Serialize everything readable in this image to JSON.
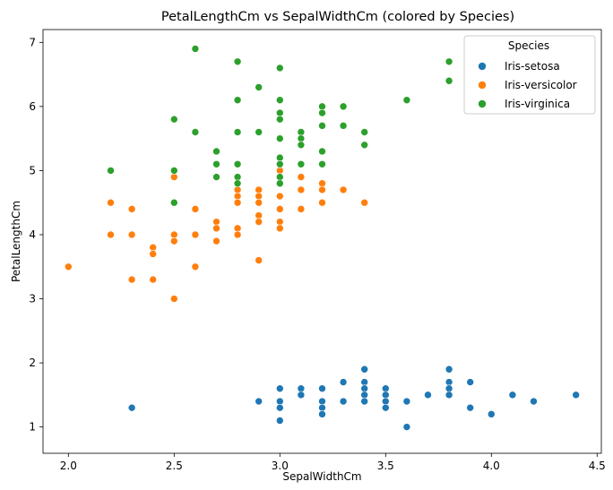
{
  "chart_data": {
    "type": "scatter",
    "title": "PetalLengthCm vs SepalWidthCm (colored by Species)",
    "xlabel": "SepalWidthCm",
    "ylabel": "PetalLengthCm",
    "xlim": [
      1.88,
      4.52
    ],
    "ylim": [
      0.59,
      7.2
    ],
    "xticks": [
      "2.0",
      "2.5",
      "3.0",
      "3.5",
      "4.0",
      "4.5"
    ],
    "yticks": [
      "1",
      "2",
      "3",
      "4",
      "5",
      "6",
      "7"
    ],
    "grid": false,
    "legend": {
      "title": "Species",
      "placement": "top-right"
    },
    "series": [
      {
        "name": "Iris-setosa",
        "color": "#1f77b4",
        "points": [
          [
            2.3,
            1.3
          ],
          [
            2.9,
            1.4
          ],
          [
            3.0,
            1.6
          ],
          [
            3.0,
            1.4
          ],
          [
            3.0,
            1.3
          ],
          [
            3.0,
            1.1
          ],
          [
            3.1,
            1.6
          ],
          [
            3.1,
            1.5
          ],
          [
            3.2,
            1.6
          ],
          [
            3.2,
            1.4
          ],
          [
            3.2,
            1.3
          ],
          [
            3.2,
            1.2
          ],
          [
            3.3,
            1.7
          ],
          [
            3.3,
            1.4
          ],
          [
            3.4,
            1.9
          ],
          [
            3.4,
            1.7
          ],
          [
            3.4,
            1.6
          ],
          [
            3.4,
            1.5
          ],
          [
            3.4,
            1.4
          ],
          [
            3.5,
            1.6
          ],
          [
            3.5,
            1.5
          ],
          [
            3.5,
            1.4
          ],
          [
            3.5,
            1.3
          ],
          [
            3.6,
            1.4
          ],
          [
            3.6,
            1.0
          ],
          [
            3.7,
            1.5
          ],
          [
            3.8,
            1.9
          ],
          [
            3.8,
            1.7
          ],
          [
            3.8,
            1.6
          ],
          [
            3.8,
            1.5
          ],
          [
            3.9,
            1.7
          ],
          [
            3.9,
            1.3
          ],
          [
            4.0,
            1.2
          ],
          [
            4.1,
            1.5
          ],
          [
            4.2,
            1.4
          ],
          [
            4.4,
            1.5
          ]
        ]
      },
      {
        "name": "Iris-versicolor",
        "color": "#ff7f0e",
        "points": [
          [
            2.0,
            3.5
          ],
          [
            2.2,
            4.5
          ],
          [
            2.2,
            4.0
          ],
          [
            2.3,
            4.4
          ],
          [
            2.3,
            4.0
          ],
          [
            2.3,
            3.3
          ],
          [
            2.4,
            3.8
          ],
          [
            2.4,
            3.7
          ],
          [
            2.4,
            3.3
          ],
          [
            2.5,
            4.9
          ],
          [
            2.5,
            4.0
          ],
          [
            2.5,
            3.9
          ],
          [
            2.5,
            3.0
          ],
          [
            2.6,
            4.4
          ],
          [
            2.6,
            4.0
          ],
          [
            2.6,
            3.5
          ],
          [
            2.7,
            4.2
          ],
          [
            2.7,
            4.1
          ],
          [
            2.7,
            3.9
          ],
          [
            2.8,
            4.7
          ],
          [
            2.8,
            4.6
          ],
          [
            2.8,
            4.5
          ],
          [
            2.8,
            4.1
          ],
          [
            2.8,
            4.0
          ],
          [
            2.9,
            4.7
          ],
          [
            2.9,
            4.6
          ],
          [
            2.9,
            4.5
          ],
          [
            2.9,
            4.3
          ],
          [
            2.9,
            4.2
          ],
          [
            2.9,
            3.6
          ],
          [
            3.0,
            5.0
          ],
          [
            3.0,
            4.6
          ],
          [
            3.0,
            4.4
          ],
          [
            3.0,
            4.2
          ],
          [
            3.0,
            4.1
          ],
          [
            3.1,
            4.9
          ],
          [
            3.1,
            4.7
          ],
          [
            3.1,
            4.4
          ],
          [
            3.2,
            4.8
          ],
          [
            3.2,
            4.7
          ],
          [
            3.2,
            4.5
          ],
          [
            3.3,
            4.7
          ],
          [
            3.4,
            4.5
          ]
        ]
      },
      {
        "name": "Iris-virginica",
        "color": "#2ca02c",
        "points": [
          [
            2.2,
            5.0
          ],
          [
            2.5,
            5.8
          ],
          [
            2.5,
            5.0
          ],
          [
            2.5,
            4.5
          ],
          [
            2.6,
            6.9
          ],
          [
            2.6,
            5.6
          ],
          [
            2.7,
            5.3
          ],
          [
            2.7,
            5.1
          ],
          [
            2.7,
            4.9
          ],
          [
            2.8,
            6.7
          ],
          [
            2.8,
            6.1
          ],
          [
            2.8,
            5.6
          ],
          [
            2.8,
            5.1
          ],
          [
            2.8,
            4.9
          ],
          [
            2.8,
            4.8
          ],
          [
            2.9,
            6.3
          ],
          [
            2.9,
            5.6
          ],
          [
            3.0,
            6.6
          ],
          [
            3.0,
            6.1
          ],
          [
            3.0,
            5.9
          ],
          [
            3.0,
            5.8
          ],
          [
            3.0,
            5.5
          ],
          [
            3.0,
            5.2
          ],
          [
            3.0,
            5.1
          ],
          [
            3.0,
            4.9
          ],
          [
            3.0,
            4.8
          ],
          [
            3.1,
            5.6
          ],
          [
            3.1,
            5.5
          ],
          [
            3.1,
            5.4
          ],
          [
            3.1,
            5.1
          ],
          [
            3.2,
            6.0
          ],
          [
            3.2,
            5.9
          ],
          [
            3.2,
            5.7
          ],
          [
            3.2,
            5.3
          ],
          [
            3.2,
            5.1
          ],
          [
            3.3,
            6.0
          ],
          [
            3.3,
            5.7
          ],
          [
            3.4,
            5.6
          ],
          [
            3.4,
            5.4
          ],
          [
            3.6,
            6.1
          ],
          [
            3.8,
            6.7
          ],
          [
            3.8,
            6.4
          ]
        ]
      }
    ]
  }
}
